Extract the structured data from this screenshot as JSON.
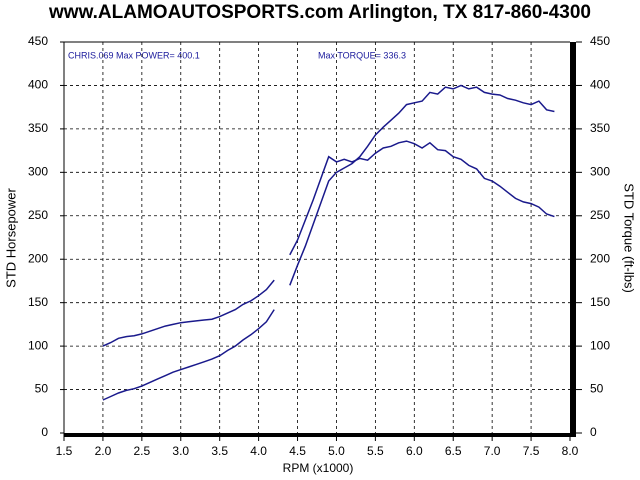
{
  "chart_data": {
    "type": "line",
    "title": "www.ALAMOAUTOSPORTS.com Arlington, TX 817-860-4300",
    "annotations": [
      "CHRIS.069  Max POWER= 400.1",
      "Max TORQUE= 336.3"
    ],
    "xlabel": "RPM (x1000)",
    "ylabel": "STD Horsepower",
    "y2label": "STD Torque (ft-lbs)",
    "xlim": [
      1.5,
      8.0
    ],
    "xticks": [
      1.5,
      {
        "value": 2,
        "label": "2.0"
      },
      2.5,
      {
        "value": 3,
        "label": "3.0"
      },
      3.5,
      {
        "value": 4,
        "label": "4.0"
      },
      4.5,
      {
        "value": 5,
        "label": "5.0"
      },
      5.5,
      {
        "value": 6,
        "label": "6.0"
      },
      6.5,
      {
        "value": 7,
        "label": "7.0"
      },
      7.5,
      {
        "value": 8,
        "label": "8.0"
      }
    ],
    "ylim": [
      0,
      450
    ],
    "yticks": [
      0,
      50,
      100,
      150,
      200,
      250,
      300,
      350,
      400,
      450
    ],
    "y2lim": [
      0,
      450
    ],
    "y2ticks": [
      0,
      50,
      100,
      150,
      200,
      250,
      300,
      350,
      400,
      450
    ],
    "grid": true,
    "x": [
      2.0,
      2.1,
      2.2,
      2.3,
      2.4,
      2.5,
      2.6,
      2.7,
      2.8,
      2.9,
      3.0,
      3.1,
      3.2,
      3.3,
      3.4,
      3.5,
      3.6,
      3.7,
      3.8,
      3.9,
      4.0,
      4.1,
      4.2,
      4.3,
      4.4,
      4.5,
      4.6,
      4.7,
      4.8,
      4.9,
      5.0,
      5.1,
      5.2,
      5.3,
      5.4,
      5.5,
      5.6,
      5.7,
      5.8,
      5.9,
      6.0,
      6.1,
      6.2,
      6.3,
      6.4,
      6.5,
      6.6,
      6.7,
      6.8,
      6.9,
      7.0,
      7.1,
      7.2,
      7.3,
      7.4,
      7.5,
      7.6,
      7.7,
      7.8
    ],
    "series": [
      {
        "color": "#1a1a8c",
        "values": [
          38,
          42,
          46,
          49,
          51,
          54,
          58,
          62,
          66,
          70,
          73,
          76,
          79,
          82,
          85,
          89,
          95,
          100,
          107,
          113,
          120,
          128,
          142,
          null,
          170,
          193,
          215,
          240,
          265,
          290,
          300,
          305,
          310,
          318,
          330,
          343,
          352,
          360,
          368,
          378,
          380,
          382,
          392,
          390,
          398,
          396,
          400,
          396,
          398,
          392,
          390,
          389,
          385,
          383,
          380,
          378,
          382,
          372,
          370
        ]
      },
      {
        "color": "#1a1a8c",
        "axis": "y2",
        "values": [
          100,
          104,
          109,
          111,
          112,
          114,
          117,
          120,
          123,
          125,
          127,
          128,
          129,
          130,
          131,
          134,
          138,
          142,
          148,
          152,
          158,
          165,
          176,
          null,
          205,
          222,
          245,
          268,
          293,
          318,
          312,
          315,
          312,
          316,
          314,
          322,
          328,
          330,
          334,
          336,
          333,
          328,
          334,
          326,
          325,
          318,
          315,
          308,
          304,
          293,
          290,
          284,
          277,
          270,
          266,
          264,
          260,
          252,
          249
        ]
      }
    ]
  }
}
